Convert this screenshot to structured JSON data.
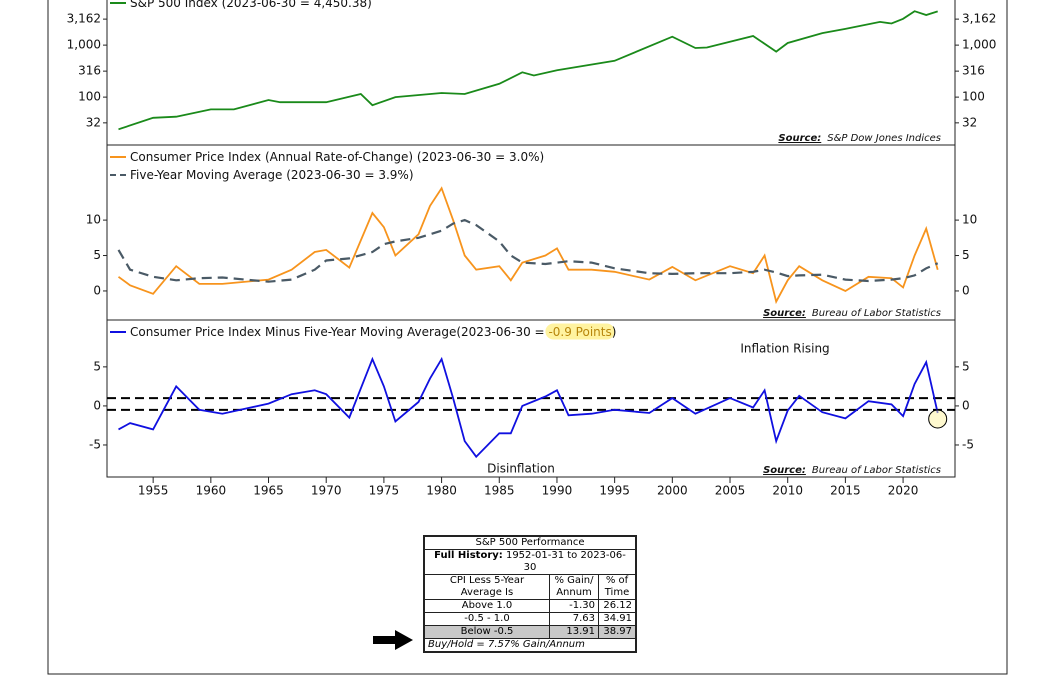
{
  "chart_data": [
    {
      "type": "line",
      "yscale": "log",
      "x": [
        1952,
        1955,
        1957,
        1960,
        1962,
        1965,
        1966,
        1970,
        1973,
        1974,
        1976,
        1980,
        1982,
        1985,
        1987,
        1988,
        1990,
        1995,
        2000,
        2002,
        2003,
        2007,
        2009,
        2010,
        2013,
        2015,
        2018,
        2019,
        2020,
        2021,
        2022,
        2023
      ],
      "series": [
        {
          "name": "S&P 500 Index (2023-06-30 = 4,450.38)",
          "color": "#1a8a1a",
          "values": [
            24,
            40,
            42,
            58,
            58,
            88,
            80,
            80,
            115,
            70,
            100,
            120,
            115,
            180,
            300,
            260,
            330,
            500,
            1450,
            880,
            900,
            1500,
            750,
            1100,
            1700,
            2050,
            2800,
            2600,
            3200,
            4500,
            3800,
            4450
          ]
        }
      ],
      "xlim": [
        1951,
        2024.5
      ],
      "ylim": [
        12,
        12000
      ],
      "yticks": [
        32,
        100,
        316,
        {
          "value": 1000,
          "label": "1,000"
        },
        {
          "value": 3162,
          "label": "3,162"
        }
      ],
      "source_label": "Source:",
      "source": "S&P Dow Jones Indices"
    },
    {
      "type": "line",
      "x": [
        1952,
        1953,
        1955,
        1957,
        1959,
        1961,
        1965,
        1967,
        1969,
        1970,
        1972,
        1974,
        1975,
        1976,
        1978,
        1979,
        1980,
        1981,
        1982,
        1983,
        1985,
        1986,
        1987,
        1989,
        1990,
        1991,
        1993,
        1995,
        1998,
        2000,
        2002,
        2005,
        2007,
        2008,
        2009,
        2010,
        2011,
        2013,
        2015,
        2017,
        2019,
        2020,
        2021,
        2022,
        2023
      ],
      "series": [
        {
          "name": "Consumer Price Index (Annual Rate-of-Change) (2023-06-30 = 3.0%)",
          "color": "#f7941d",
          "values": [
            2.0,
            0.8,
            -0.4,
            3.5,
            1.0,
            1.0,
            1.6,
            3.0,
            5.5,
            5.8,
            3.3,
            11.0,
            9.0,
            5.0,
            8.0,
            12.0,
            14.5,
            10.0,
            5.0,
            3.0,
            3.5,
            1.5,
            4.0,
            5.0,
            6.0,
            3.0,
            3.0,
            2.7,
            1.6,
            3.4,
            1.5,
            3.5,
            2.5,
            5.0,
            -1.5,
            1.5,
            3.5,
            1.5,
            0.0,
            2.0,
            1.8,
            0.5,
            5.0,
            8.8,
            3.0
          ]
        },
        {
          "name": "Five-Year Moving Average (2023-06-30 = 3.9%)",
          "color": "#4a5a66",
          "dashed": true,
          "values": [
            5.8,
            3.0,
            2.0,
            1.5,
            1.8,
            1.9,
            1.3,
            1.6,
            3.0,
            4.3,
            4.6,
            5.5,
            6.6,
            7.0,
            7.5,
            8.0,
            8.5,
            9.5,
            10.0,
            9.3,
            7.0,
            5.0,
            4.0,
            3.8,
            4.0,
            4.2,
            4.0,
            3.2,
            2.5,
            2.4,
            2.5,
            2.5,
            2.7,
            3.0,
            2.6,
            2.1,
            2.2,
            2.3,
            1.6,
            1.4,
            1.6,
            1.8,
            2.2,
            3.2,
            3.9
          ]
        }
      ],
      "xlim": [
        1951,
        2024.5
      ],
      "ylim": [
        -4.1,
        20.6
      ],
      "yticks": [
        0,
        5,
        10
      ],
      "source_label": "Source:",
      "source": "Bureau of Labor Statistics"
    },
    {
      "type": "line",
      "x": [
        1952,
        1953,
        1955,
        1957,
        1959,
        1961,
        1965,
        1967,
        1969,
        1970,
        1972,
        1974,
        1975,
        1976,
        1978,
        1979,
        1980,
        1981,
        1982,
        1983,
        1985,
        1986,
        1987,
        1989,
        1990,
        1991,
        1993,
        1995,
        1998,
        2000,
        2002,
        2005,
        2007,
        2008,
        2009,
        2010,
        2011,
        2013,
        2015,
        2017,
        2019,
        2020,
        2021,
        2022,
        2023
      ],
      "series": [
        {
          "name": "Consumer Price Index Minus Five-Year Moving Average(2023-06-30 = ",
          "highlight": "-0.9 Points",
          "name_end": ")",
          "color": "#1010e0",
          "values": [
            -3.0,
            -2.2,
            -3.0,
            2.5,
            -0.5,
            -1.0,
            0.3,
            1.5,
            2.0,
            1.5,
            -1.5,
            6.0,
            2.5,
            -2.0,
            0.5,
            3.5,
            6.0,
            1.0,
            -4.5,
            -6.5,
            -3.5,
            -3.5,
            0.0,
            1.2,
            2.0,
            -1.2,
            -1.0,
            -0.5,
            -0.9,
            1.0,
            -1.0,
            1.0,
            -0.2,
            2.0,
            -4.5,
            -0.6,
            1.3,
            -0.8,
            -1.6,
            0.6,
            0.2,
            -1.3,
            2.8,
            5.6,
            -0.9
          ]
        }
      ],
      "reference_lines": [
        1.0,
        -0.5
      ],
      "xlim": [
        1951,
        2024.5
      ],
      "ylim": [
        -9.1,
        11
      ],
      "yticks": [
        -5,
        0,
        5
      ],
      "xticks": [
        1955,
        1960,
        1965,
        1970,
        1975,
        1980,
        1985,
        1990,
        1995,
        2000,
        2005,
        2010,
        2015,
        2020
      ],
      "annotations": [
        "Inflation Rising",
        "Disinflation"
      ],
      "source_label": "Source:",
      "source": "Bureau of Labor Statistics"
    }
  ],
  "table": {
    "title": "S&P 500 Performance",
    "subtitle_label": "Full History:",
    "subtitle": "1952-01-31 to 2023-06-30",
    "header": [
      "CPI Less 5-Year Average Is",
      "% Gain/ Annum",
      "% of Time"
    ],
    "rows": [
      [
        "Above 1.0",
        "-1.30",
        "26.12"
      ],
      [
        "-0.5 - 1.0",
        "7.63",
        "34.91"
      ],
      [
        "Below -0.5",
        "13.91",
        "38.97"
      ]
    ],
    "footer": "Buy/Hold = 7.57% Gain/Annum"
  }
}
